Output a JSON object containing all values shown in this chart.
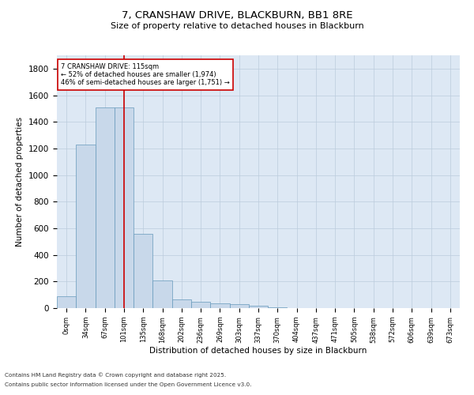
{
  "title": "7, CRANSHAW DRIVE, BLACKBURN, BB1 8RE",
  "subtitle": "Size of property relative to detached houses in Blackburn",
  "xlabel": "Distribution of detached houses by size in Blackburn",
  "ylabel": "Number of detached properties",
  "footnote1": "Contains HM Land Registry data © Crown copyright and database right 2025.",
  "footnote2": "Contains public sector information licensed under the Open Government Licence v3.0.",
  "bar_color": "#c8d8ea",
  "bar_edgecolor": "#6699bb",
  "grid_color": "#bbccdd",
  "background_color": "#dde8f4",
  "annotation_box_color": "#cc0000",
  "vline_color": "#cc0000",
  "categories": [
    "0sqm",
    "34sqm",
    "67sqm",
    "101sqm",
    "135sqm",
    "168sqm",
    "202sqm",
    "236sqm",
    "269sqm",
    "303sqm",
    "337sqm",
    "370sqm",
    "404sqm",
    "437sqm",
    "471sqm",
    "505sqm",
    "538sqm",
    "572sqm",
    "606sqm",
    "639sqm",
    "673sqm"
  ],
  "values": [
    90,
    1230,
    1510,
    1510,
    560,
    210,
    65,
    45,
    35,
    28,
    15,
    7,
    2,
    1,
    0,
    0,
    0,
    0,
    0,
    0,
    0
  ],
  "ylim": [
    0,
    1900
  ],
  "yticks": [
    0,
    200,
    400,
    600,
    800,
    1000,
    1200,
    1400,
    1600,
    1800
  ],
  "vline_position": 3.0,
  "annotation_text_line1": "7 CRANSHAW DRIVE: 115sqm",
  "annotation_text_line2": "← 52% of detached houses are smaller (1,974)",
  "annotation_text_line3": "46% of semi-detached houses are larger (1,751) →"
}
